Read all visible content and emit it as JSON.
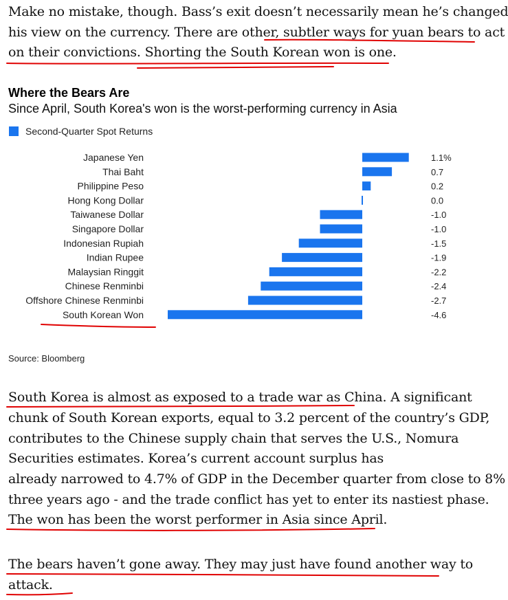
{
  "article": {
    "intro_lines": [
      "Make no mistake, though. Bass’s exit doesn’t necessarily mean he’s changed",
      "his view on the currency. There are other, subtler ways for yuan bears to act",
      "on their convictions. Shorting the South Korean won is one."
    ],
    "body_lines": [
      "South Korea is almost as exposed to a trade war as China. A significant",
      "chunk of South Korean exports, equal to 3.2 percent of the country’s GDP,",
      "contributes to the Chinese supply chain that serves the U.S., Nomura",
      "Securities estimates. Korea’s current account surplus has",
      "already narrowed to 4.7% of GDP in the December quarter from close to 8%",
      "three years ago - and the trade conflict has yet to enter its nastiest phase.",
      "The won has been the worst performer in Asia since April."
    ],
    "closing_lines": [
      "The bears haven’t gone away. They may just have found another way to",
      "attack."
    ]
  },
  "chart_data": {
    "type": "bar",
    "orientation": "horizontal",
    "title": "Where the Bears Are",
    "subtitle": "Since April, South Korea's won is the worst-performing currency in Asia",
    "source": "Source: Bloomberg",
    "legend_position": "top-left",
    "grid": false,
    "categories": [
      "Japanese Yen",
      "Thai Baht",
      "Philippine Peso",
      "Hong Kong Dollar",
      "Taiwanese Dollar",
      "Singapore Dollar",
      "Indonesian Rupiah",
      "Indian Rupee",
      "Malaysian Ringgit",
      "Chinese Renminbi",
      "Offshore Chinese Renminbi",
      "South Korean Won"
    ],
    "series": [
      {
        "name": "Second-Quarter Spot Returns",
        "values": [
          1.1,
          0.7,
          0.2,
          0.0,
          -1.0,
          -1.0,
          -1.5,
          -1.9,
          -2.2,
          -2.4,
          -2.7,
          -4.6
        ],
        "value_labels": [
          "1.1%",
          "0.7",
          "0.2",
          "0.0",
          "-1.0",
          "-1.0",
          "-1.5",
          "-1.9",
          "-2.2",
          "-2.4",
          "-2.7",
          "-4.6"
        ]
      }
    ],
    "xlim": [
      -4.6,
      1.1
    ],
    "colors": {
      "bar": "#1a75ee"
    }
  },
  "annotations": {
    "pen_color": "#e00000"
  }
}
